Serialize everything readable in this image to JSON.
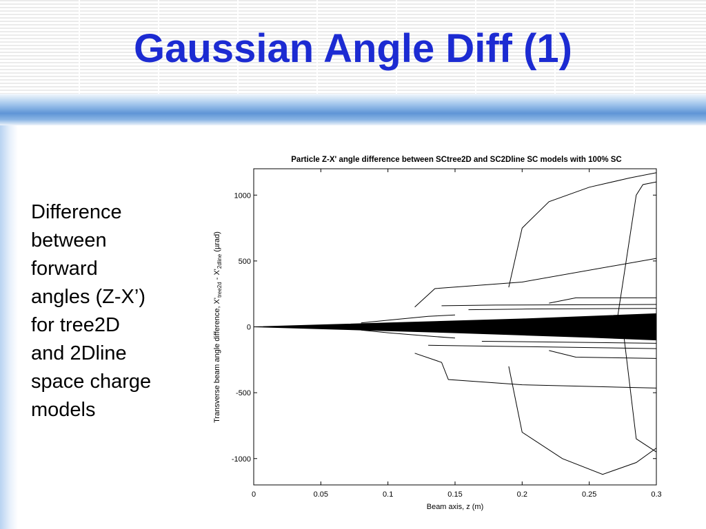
{
  "slide": {
    "title": "Gaussian Angle Diff (1)",
    "body_lines": [
      "Difference",
      "between",
      "forward",
      "angles (Z-X’)",
      "for tree2D",
      "and 2Dline",
      "space charge",
      "models"
    ],
    "colors": {
      "title": "#1c2bd2",
      "band": "#5f95d6"
    }
  },
  "chart_data": {
    "type": "line",
    "title": "Particle Z-X' angle difference between SCtree2D and SC2Dline SC models with 100% SC",
    "xlabel": "Beam axis, z (m)",
    "ylabel": {
      "text1": "Transverse beam angle difference, X'",
      "sub1": "tree2d",
      "text2": " - X'",
      "sub2": "2dline",
      "text3": " (µrad)"
    },
    "xlim": [
      0,
      0.3
    ],
    "ylim": [
      -1200,
      1200
    ],
    "xticks": [
      0,
      0.05,
      0.1,
      0.15,
      0.2,
      0.25,
      0.3
    ],
    "xtick_labels": [
      "0",
      "0.05",
      "0.1",
      "0.15",
      "0.2",
      "0.25",
      "0.3"
    ],
    "yticks": [
      1000,
      500,
      0,
      -500,
      -1000
    ],
    "ytick_labels": [
      "1000",
      "500",
      "0",
      "-500",
      "-1000"
    ],
    "grid": false,
    "line_color": "#000000",
    "envelope": {
      "x": [
        0,
        0.05,
        0.1,
        0.15,
        0.2,
        0.25,
        0.3
      ],
      "upper": [
        0,
        15,
        30,
        45,
        60,
        80,
        100
      ],
      "lower": [
        0,
        -15,
        -30,
        -45,
        -62,
        -80,
        -100
      ]
    },
    "series": [
      {
        "x": [
          0.19,
          0.2,
          0.22,
          0.25,
          0.28,
          0.3
        ],
        "y": [
          300,
          750,
          950,
          1060,
          1130,
          1170
        ]
      },
      {
        "x": [
          0.19,
          0.2,
          0.23,
          0.26,
          0.285,
          0.3
        ],
        "y": [
          -300,
          -800,
          -1000,
          -1120,
          -1030,
          -920
        ]
      },
      {
        "x": [
          0.27,
          0.285,
          0.29,
          0.3
        ],
        "y": [
          0,
          1000,
          1080,
          1100
        ]
      },
      {
        "x": [
          0.275,
          0.285,
          0.3
        ],
        "y": [
          0,
          -850,
          -950
        ]
      },
      {
        "x": [
          0.12,
          0.135,
          0.2,
          0.3
        ],
        "y": [
          150,
          290,
          340,
          520
        ]
      },
      {
        "x": [
          0.12,
          0.14,
          0.145,
          0.2,
          0.3
        ],
        "y": [
          -200,
          -270,
          -400,
          -440,
          -465
        ]
      },
      {
        "x": [
          0.14,
          0.18,
          0.3
        ],
        "y": [
          160,
          165,
          170
        ]
      },
      {
        "x": [
          0.13,
          0.2,
          0.3
        ],
        "y": [
          -140,
          -150,
          -165
        ]
      },
      {
        "x": [
          0.22,
          0.24,
          0.3
        ],
        "y": [
          180,
          220,
          220
        ]
      },
      {
        "x": [
          0.22,
          0.24,
          0.3
        ],
        "y": [
          -180,
          -230,
          -240
        ]
      },
      {
        "x": [
          0.16,
          0.2,
          0.3
        ],
        "y": [
          130,
          135,
          140
        ]
      },
      {
        "x": [
          0.17,
          0.22,
          0.3
        ],
        "y": [
          -110,
          -115,
          -125
        ]
      },
      {
        "x": [
          0.08,
          0.1,
          0.13,
          0.15
        ],
        "y": [
          30,
          50,
          80,
          90
        ]
      },
      {
        "x": [
          0.08,
          0.1,
          0.13,
          0.15
        ],
        "y": [
          -25,
          -45,
          -70,
          -85
        ]
      }
    ]
  }
}
